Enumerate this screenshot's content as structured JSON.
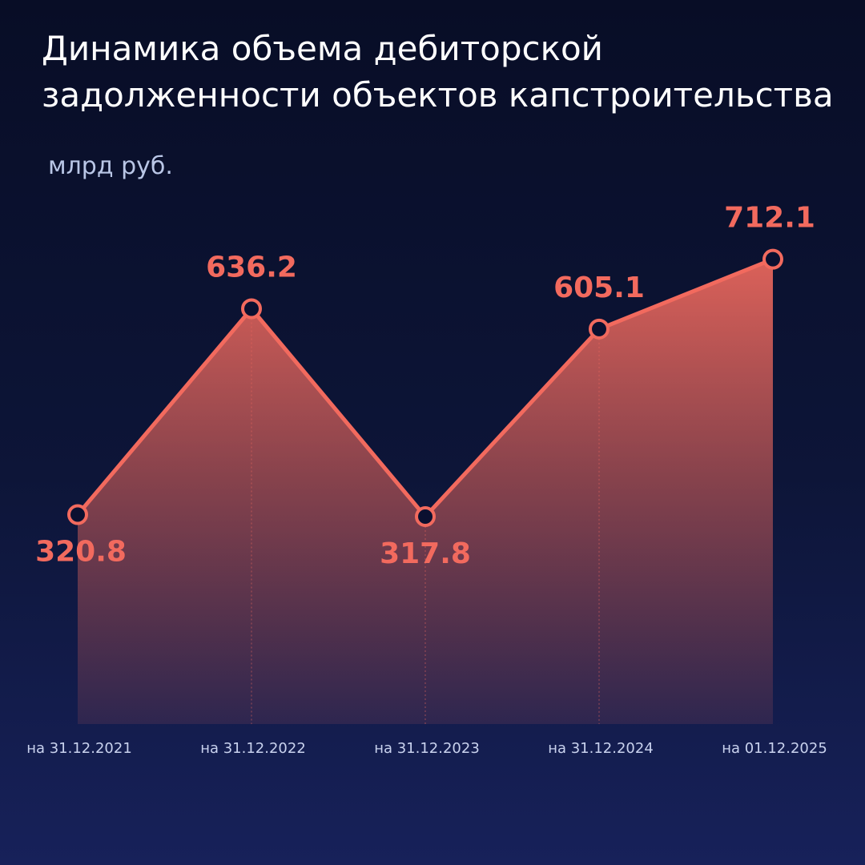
{
  "chart_data": {
    "type": "area",
    "title": "Динамика объема дебиторской задолженности объектов капстроительства",
    "subtitle": "млрд руб.",
    "categories": [
      "на 31.12.2021",
      "на 31.12.2022",
      "на 31.12.2023",
      "на 31.12.2024",
      "на 01.12.2025"
    ],
    "values": [
      320.8,
      636.2,
      317.8,
      605.1,
      712.1
    ],
    "color": "#f26a5e",
    "ylim": [
      0,
      800
    ]
  }
}
